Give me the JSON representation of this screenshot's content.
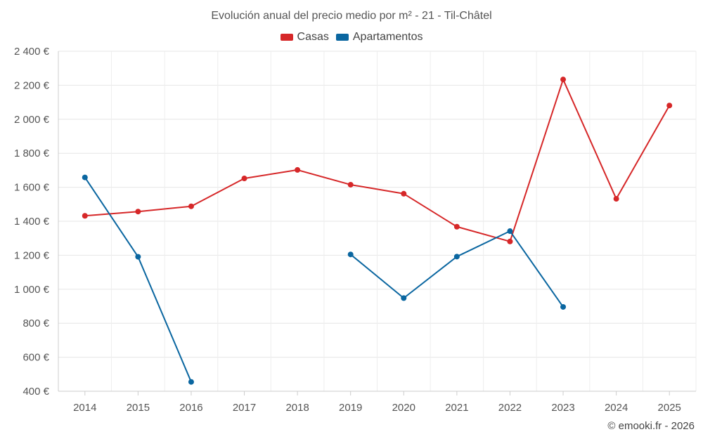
{
  "chart_data": {
    "type": "line",
    "title": "Evolución anual del precio medio por m² - 21 - Til-Châtel",
    "xlabel": "",
    "ylabel": "",
    "categories": [
      "2014",
      "2015",
      "2016",
      "2017",
      "2018",
      "2019",
      "2020",
      "2021",
      "2022",
      "2023",
      "2024",
      "2025"
    ],
    "ylim": [
      400,
      2400
    ],
    "yticks": [
      400,
      600,
      800,
      1000,
      1200,
      1400,
      1600,
      1800,
      2000,
      2200,
      2400
    ],
    "ytick_labels": [
      "400 €",
      "600 €",
      "800 €",
      "1 000 €",
      "1 200 €",
      "1 400 €",
      "1 600 €",
      "1 800 €",
      "2 000 €",
      "2 200 €",
      "2 400 €"
    ],
    "grid": true,
    "legend_position": "top-center",
    "series": [
      {
        "name": "Casas",
        "color": "#d62728",
        "values": [
          1432,
          1457,
          1488,
          1652,
          1702,
          1615,
          1562,
          1368,
          1281,
          2234,
          1532,
          2081
        ]
      },
      {
        "name": "Apartamentos",
        "color": "#0a66a0",
        "values": [
          1658,
          1191,
          455,
          null,
          null,
          1205,
          948,
          1192,
          1342,
          896,
          null,
          null
        ]
      }
    ]
  },
  "credit": "© emooki.fr - 2026"
}
